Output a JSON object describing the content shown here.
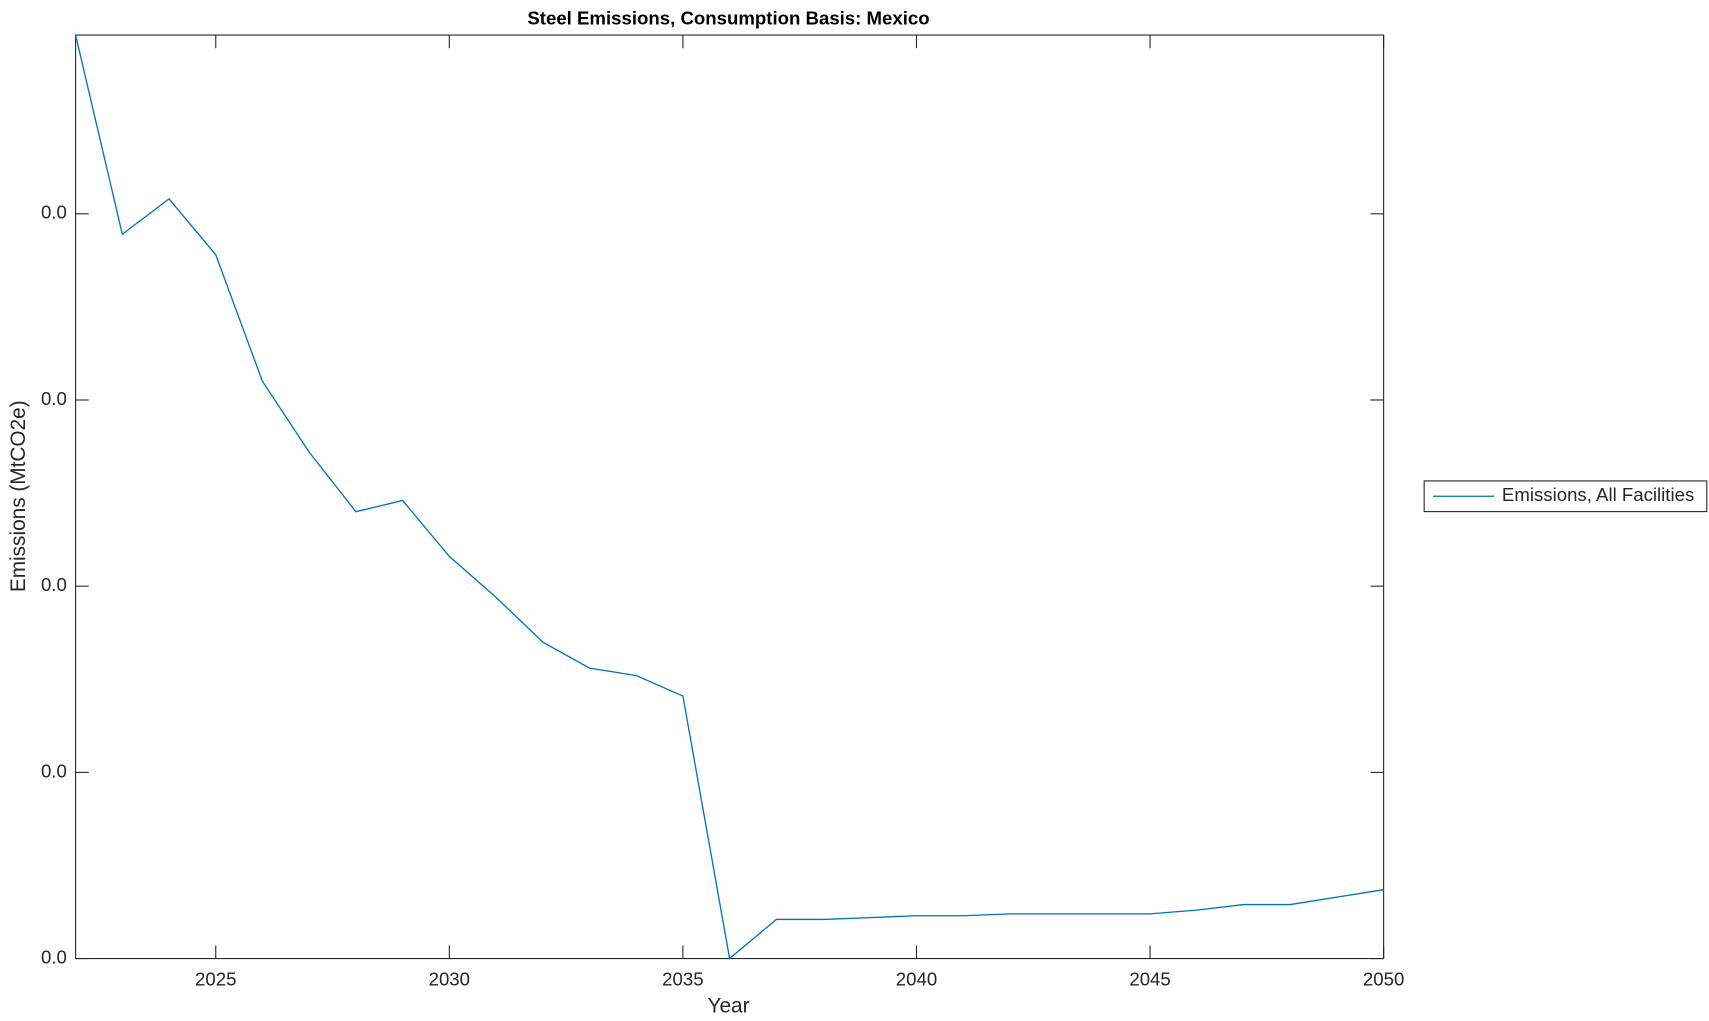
{
  "chart_data": {
    "type": "line",
    "title": "Steel Emissions, Consumption Basis: Mexico",
    "x_label": "Year",
    "y_label": "Emissions (MtCO2e)",
    "x": [
      2022,
      2023,
      2024,
      2025,
      2026,
      2027,
      2028,
      2029,
      2030,
      2031,
      2032,
      2033,
      2034,
      2035,
      2036,
      2037,
      2038,
      2039,
      2040,
      2041,
      2042,
      2043,
      2044,
      2045,
      2046,
      2047,
      2048,
      2049,
      2050
    ],
    "series": [
      {
        "name": "Emissions, All Facilities",
        "color": "#0072bd",
        "values": [
          0.0496,
          0.0389,
          0.0408,
          0.0378,
          0.031,
          0.0272,
          0.024,
          0.0246,
          0.0216,
          0.0194,
          0.017,
          0.0156,
          0.0152,
          0.0141,
          0.0,
          0.0021,
          0.0021,
          0.0022,
          0.0023,
          0.0023,
          0.0024,
          0.0024,
          0.0024,
          0.0024,
          0.0026,
          0.0029,
          0.0029,
          0.0033,
          0.0037
        ]
      }
    ],
    "xlim": [
      2022,
      2050
    ],
    "xticks": [
      2025,
      2030,
      2035,
      2040,
      2045,
      2050
    ],
    "ylim": [
      0,
      0.0496
    ],
    "yticks": [
      {
        "value": 0,
        "label": "0.0"
      },
      {
        "value": 0.01,
        "label": "0.0"
      },
      {
        "value": 0.02,
        "label": "0.0"
      },
      {
        "value": 0.03,
        "label": "0.0"
      },
      {
        "value": 0.04,
        "label": "0.0"
      }
    ],
    "grid": false,
    "legend": "east-outside"
  }
}
